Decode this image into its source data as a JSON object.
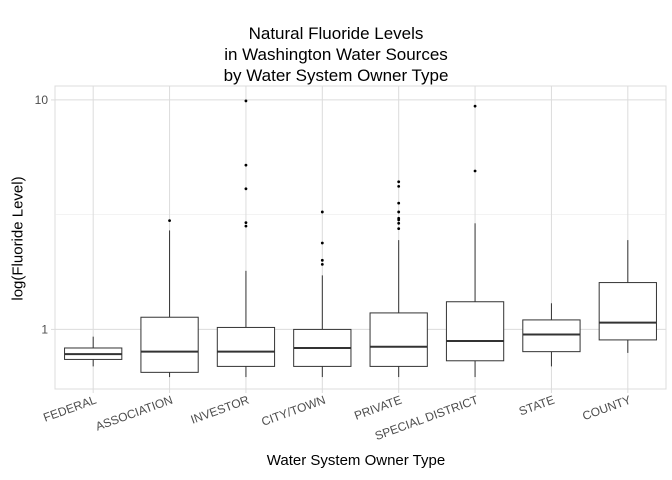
{
  "chart_data": {
    "type": "box",
    "title_lines": [
      "Natural Fluoride Levels",
      "in Washington Water Sources",
      "by Water System Owner Type"
    ],
    "xlabel": "Water System Owner Type",
    "ylabel": "log(Fluoride Level)",
    "y_scale": "log10",
    "ylim": [
      0.55,
      11.5
    ],
    "y_ticks": [
      1,
      10
    ],
    "y_tick_labels": [
      "1",
      "10"
    ],
    "grid": true,
    "categories": [
      "FEDERAL",
      "ASSOCIATION",
      "INVESTOR",
      "CITY/TOWN",
      "PRIVATE",
      "SPECIAL DISTRICT",
      "STATE",
      "COUNTY"
    ],
    "boxes": [
      {
        "category": "FEDERAL",
        "min": 0.69,
        "q1": 0.74,
        "median": 0.78,
        "q3": 0.83,
        "max": 0.93,
        "outliers": []
      },
      {
        "category": "ASSOCIATION",
        "min": 0.62,
        "q1": 0.65,
        "median": 0.8,
        "q3": 1.13,
        "max": 2.7,
        "outliers": [
          2.98
        ]
      },
      {
        "category": "INVESTOR",
        "min": 0.62,
        "q1": 0.69,
        "median": 0.8,
        "q3": 1.02,
        "max": 1.8,
        "outliers": [
          2.82,
          2.92,
          4.1,
          5.2,
          9.9
        ]
      },
      {
        "category": "CITY/TOWN",
        "min": 0.62,
        "q1": 0.69,
        "median": 0.83,
        "q3": 1.0,
        "max": 1.72,
        "outliers": [
          1.92,
          2.0,
          2.38,
          3.25
        ]
      },
      {
        "category": "PRIVATE",
        "min": 0.62,
        "q1": 0.69,
        "median": 0.84,
        "q3": 1.18,
        "max": 2.45,
        "outliers": [
          2.75,
          2.9,
          3.0,
          3.05,
          3.25,
          3.55,
          4.2,
          4.4
        ]
      },
      {
        "category": "SPECIAL DISTRICT",
        "min": 0.62,
        "q1": 0.73,
        "median": 0.89,
        "q3": 1.32,
        "max": 2.9,
        "outliers": [
          4.9,
          9.4
        ]
      },
      {
        "category": "STATE",
        "min": 0.69,
        "q1": 0.8,
        "median": 0.95,
        "q3": 1.1,
        "max": 1.3,
        "outliers": []
      },
      {
        "category": "COUNTY",
        "min": 0.79,
        "q1": 0.9,
        "median": 1.07,
        "q3": 1.6,
        "max": 2.45,
        "outliers": []
      }
    ],
    "colors": {
      "box_fill": "#ffffff",
      "box_stroke": "#333333",
      "grid": "#dcdcdc",
      "panel_border": "#dcdcdc",
      "tick_text": "#4d4d4d"
    }
  }
}
